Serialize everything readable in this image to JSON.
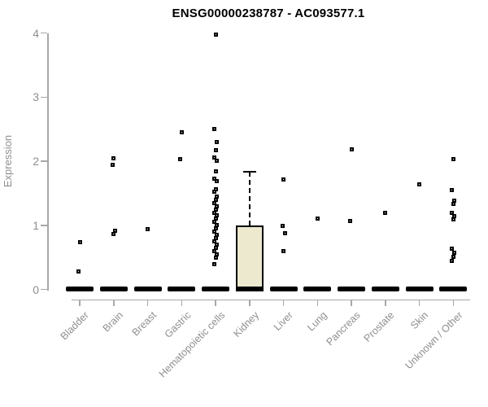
{
  "header": {
    "title": "ENSG00000238787 - AC093577.1"
  },
  "colors": {
    "box_fill": "#EDE9CF",
    "box_stroke": "#000000",
    "point_color": "#000000",
    "zero_bar_color": "#000000",
    "axis_line_color": "#a8a8a8",
    "axis_text_color": "#8f8f8f",
    "title_color": "#000000",
    "background": "#ffffff"
  },
  "chart_data": {
    "type": "boxplot",
    "title": "ENSG00000238787 - AC093577.1",
    "xlabel": "",
    "ylabel": "Expression",
    "ylim": [
      0,
      4
    ],
    "yticks": [
      0,
      1,
      2,
      3,
      4
    ],
    "grid": false,
    "legend": "none",
    "x_label_rotation_deg": 45,
    "categories": [
      "Bladder",
      "Brain",
      "Breast",
      "Gastric",
      "Hematopoietic cells",
      "Kidney",
      "Liver",
      "Lung",
      "Pancreas",
      "Prostate",
      "Skin",
      "Unknown / Other"
    ],
    "groups": [
      {
        "label": "Bladder",
        "box": {
          "q1": 0,
          "median": 0,
          "q3": 0,
          "whisker_low": 0,
          "whisker_high": 0
        },
        "points": [
          0.74,
          0.28
        ]
      },
      {
        "label": "Brain",
        "box": {
          "q1": 0,
          "median": 0,
          "q3": 0,
          "whisker_low": 0,
          "whisker_high": 0
        },
        "points": [
          2.05,
          1.94,
          0.91,
          0.86
        ]
      },
      {
        "label": "Breast",
        "box": {
          "q1": 0,
          "median": 0,
          "q3": 0,
          "whisker_low": 0,
          "whisker_high": 0
        },
        "points": [
          0.94
        ]
      },
      {
        "label": "Gastric",
        "box": {
          "q1": 0,
          "median": 0,
          "q3": 0,
          "whisker_low": 0,
          "whisker_high": 0
        },
        "points": [
          2.45,
          2.03
        ]
      },
      {
        "label": "Hematopoietic cells",
        "box": {
          "q1": 0,
          "median": 0,
          "q3": 0,
          "whisker_low": 0,
          "whisker_high": 0
        },
        "points": [
          3.97,
          2.5,
          2.3,
          2.17,
          2.06,
          2.01,
          1.84,
          1.73,
          1.69,
          1.56,
          1.52,
          1.45,
          1.4,
          1.35,
          1.3,
          1.25,
          1.2,
          1.15,
          1.1,
          1.05,
          1.0,
          0.95,
          0.9,
          0.85,
          0.8,
          0.75,
          0.7,
          0.65,
          0.6,
          0.55,
          0.49,
          0.4
        ]
      },
      {
        "label": "Kidney",
        "box": {
          "q1": 0,
          "median": 0,
          "q3": 1.0,
          "whisker_low": 0,
          "whisker_high": 1.84
        },
        "points": []
      },
      {
        "label": "Liver",
        "box": {
          "q1": 0,
          "median": 0,
          "q3": 0,
          "whisker_low": 0,
          "whisker_high": 0
        },
        "points": [
          1.71,
          0.99,
          0.87,
          0.6
        ]
      },
      {
        "label": "Lung",
        "box": {
          "q1": 0,
          "median": 0,
          "q3": 0,
          "whisker_low": 0,
          "whisker_high": 0
        },
        "points": [
          1.11
        ]
      },
      {
        "label": "Pancreas",
        "box": {
          "q1": 0,
          "median": 0,
          "q3": 0,
          "whisker_low": 0,
          "whisker_high": 0
        },
        "points": [
          2.19,
          1.07
        ]
      },
      {
        "label": "Prostate",
        "box": {
          "q1": 0,
          "median": 0,
          "q3": 0,
          "whisker_low": 0,
          "whisker_high": 0
        },
        "points": [
          1.2
        ]
      },
      {
        "label": "Skin",
        "box": {
          "q1": 0,
          "median": 0,
          "q3": 0,
          "whisker_low": 0,
          "whisker_high": 0
        },
        "points": [
          1.64
        ]
      },
      {
        "label": "Unknown / Other",
        "box": {
          "q1": 0,
          "median": 0,
          "q3": 0,
          "whisker_low": 0,
          "whisker_high": 0
        },
        "points": [
          2.03,
          1.55,
          1.39,
          1.33,
          1.2,
          1.14,
          1.09,
          0.64,
          0.57,
          0.51,
          0.45
        ]
      }
    ]
  }
}
